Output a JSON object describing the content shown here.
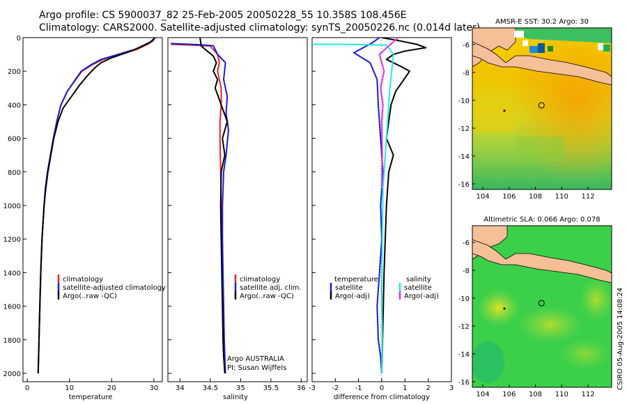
{
  "header": {
    "title_line1": "Argo profile: CS 5900037_82 25-Feb-2005 20050228_55 10.358S 108.456E",
    "title_line2": "Climatology: CARS2000. Satellite-adjusted climatology: synTS_20050226.nc (0.014d later)"
  },
  "side_label": "CSIRO 05-Aug-2005 14:08:24",
  "colors": {
    "red": "#e8241c",
    "blue": "#1a1adc",
    "black": "#000000",
    "cyan": "#22e8e8",
    "magenta": "#e830e0",
    "land": "#f5bf98"
  },
  "chart_data": [
    {
      "id": "temperature",
      "type": "line",
      "xlabel": "temperature",
      "xlim": [
        -1,
        32
      ],
      "ylim": [
        2050,
        0
      ],
      "xticks": [
        0,
        10,
        20,
        30
      ],
      "yticks": [
        0,
        200,
        400,
        600,
        800,
        1000,
        1200,
        1400,
        1600,
        1800,
        2000
      ],
      "legend_position": "lower-right",
      "series": [
        {
          "name": "climatology",
          "color": "red",
          "x": [
            30.2,
            29.8,
            28.5,
            26,
            22,
            18,
            15.5,
            13,
            11.5,
            9.5,
            8,
            7,
            6.2,
            5.5,
            4.8,
            4.3,
            4.0,
            3.5,
            3.2,
            3.0,
            2.8,
            2.7,
            2.6
          ],
          "y": [
            0,
            20,
            40,
            70,
            100,
            130,
            160,
            200,
            250,
            320,
            400,
            500,
            600,
            700,
            800,
            900,
            1000,
            1200,
            1400,
            1600,
            1800,
            1900,
            2000
          ]
        },
        {
          "name": "satellite-adjusted climatology",
          "color": "blue",
          "x": [
            30.2,
            29.6,
            28,
            25.5,
            21.5,
            17.5,
            15.2,
            12.8,
            11.4,
            9.5,
            8,
            7,
            6.2,
            5.5,
            4.8,
            4.3,
            4.0,
            3.5,
            3.2,
            3.0,
            2.8,
            2.7,
            2.6
          ],
          "y": [
            0,
            20,
            40,
            70,
            100,
            130,
            160,
            200,
            250,
            320,
            400,
            500,
            600,
            700,
            800,
            900,
            1000,
            1200,
            1400,
            1600,
            1800,
            1900,
            2000
          ]
        },
        {
          "name": "Argo(..raw -QC)",
          "color": "black",
          "x": [
            30.3,
            29.0,
            26.5,
            23.5,
            20,
            17.5,
            16,
            14.5,
            12.5,
            10.5,
            8.5,
            7.3,
            6.3,
            5.6,
            4.9,
            4.4,
            4.0,
            3.5,
            3.2,
            3.0,
            2.8,
            2.7,
            2.6
          ],
          "y": [
            0,
            30,
            60,
            90,
            120,
            150,
            180,
            220,
            280,
            350,
            420,
            500,
            600,
            700,
            800,
            900,
            1000,
            1200,
            1400,
            1600,
            1800,
            1900,
            2000
          ]
        }
      ]
    },
    {
      "id": "salinity",
      "type": "line",
      "xlabel": "salinity",
      "xlim": [
        33.8,
        36.1
      ],
      "ylim": [
        2050,
        0
      ],
      "xticks": [
        34,
        34.5,
        35,
        35.5,
        36
      ],
      "legend_position": "lower-right",
      "annotations": [
        "Argo AUSTRALIA",
        "PI: Susan Wijffels"
      ],
      "series": [
        {
          "name": "climatology",
          "color": "red",
          "x": [
            33.85,
            34.2,
            34.5,
            34.62,
            34.65,
            34.62,
            34.68,
            34.68,
            34.66,
            34.66,
            34.67,
            34.68,
            34.69,
            34.7,
            34.71,
            34.72,
            34.73,
            34.74
          ],
          "y": [
            40,
            45,
            50,
            100,
            150,
            200,
            300,
            400,
            500,
            600,
            800,
            1000,
            1200,
            1400,
            1600,
            1800,
            1900,
            2000
          ]
        },
        {
          "name": "satellite adj. clim.",
          "color": "blue",
          "x": [
            33.85,
            34.3,
            34.55,
            34.62,
            34.75,
            34.72,
            34.78,
            34.76,
            34.8,
            34.76,
            34.72,
            34.7,
            34.7,
            34.71,
            34.72,
            34.73,
            34.74,
            34.75
          ],
          "y": [
            35,
            42,
            48,
            100,
            150,
            250,
            350,
            450,
            550,
            700,
            800,
            1000,
            1200,
            1400,
            1600,
            1800,
            1900,
            2000
          ]
        },
        {
          "name": "Argo(..raw -QC)",
          "color": "black",
          "x": [
            34.33,
            34.35,
            34.45,
            34.55,
            34.6,
            34.55,
            34.62,
            34.58,
            34.68,
            34.78,
            34.7,
            34.74,
            34.68,
            34.67,
            34.68,
            34.69,
            34.7,
            34.71,
            34.72,
            34.73,
            34.74
          ],
          "y": [
            0,
            50,
            80,
            110,
            150,
            200,
            250,
            300,
            400,
            500,
            600,
            700,
            800,
            1000,
            1200,
            1400,
            1600,
            1800,
            1900,
            1950,
            2000
          ]
        }
      ]
    },
    {
      "id": "difference",
      "type": "line",
      "xlabel": "difference from climatology",
      "xlim": [
        -3,
        3
      ],
      "ylim": [
        2050,
        0
      ],
      "xticks": [
        -3,
        -2,
        -1,
        0,
        1,
        2,
        3
      ],
      "legend_position": "lower-center",
      "legend_group_titles": [
        "temperature",
        "salinity"
      ],
      "series": [
        {
          "name": "satellite",
          "group": "temperature",
          "color": "blue",
          "x": [
            -0.1,
            -0.4,
            -0.8,
            -1.2,
            -0.5,
            -0.2,
            -0.15,
            -0.05,
            0.05,
            -0.05,
            0,
            -0.1,
            -0.2,
            -0.15,
            -0.05,
            0
          ],
          "y": [
            0,
            30,
            60,
            90,
            150,
            250,
            400,
            600,
            800,
            1000,
            1200,
            1400,
            1600,
            1800,
            1900,
            2000
          ]
        },
        {
          "name": "Argo(-adj)",
          "group": "temperature",
          "color": "black",
          "x": [
            0,
            0.8,
            1.5,
            1.9,
            1.0,
            0.5,
            0.2,
            0.8,
            1.2,
            0.9,
            0.6,
            0.4,
            0.3,
            0.2,
            0.5,
            0.3,
            0.2,
            0.15,
            0.1,
            0.05,
            0
          ],
          "y": [
            0,
            20,
            40,
            60,
            80,
            100,
            130,
            170,
            200,
            260,
            320,
            400,
            500,
            600,
            700,
            800,
            1000,
            1200,
            1400,
            1700,
            2000
          ]
        },
        {
          "name": "satellite",
          "group": "salinity",
          "color": "cyan",
          "x": [
            -3,
            -1.5,
            0.2,
            0.5,
            0.35,
            0.25,
            0.15,
            0.05,
            0.02,
            0,
            0.02,
            0,
            0
          ],
          "y": [
            40,
            40,
            45,
            100,
            300,
            500,
            700,
            900,
            1200,
            1500,
            1800,
            1950,
            2000
          ]
        },
        {
          "name": "Argo(-adj)",
          "group": "salinity",
          "color": "magenta",
          "x": [
            0.7,
            0.3,
            -0.1,
            0.1,
            -0.05,
            0.05,
            0.0,
            0.02,
            0
          ],
          "y": [
            0,
            50,
            100,
            200,
            300,
            400,
            500,
            700,
            900
          ]
        }
      ]
    },
    {
      "id": "sst_map",
      "type": "heatmap",
      "title": "AMSR-E SST: 30.2 Argo: 30",
      "xticks": [
        104,
        106,
        108,
        110,
        112
      ],
      "yticks": [
        -6,
        -8,
        -10,
        -12,
        -14,
        -16
      ],
      "xlim": [
        103.2,
        113.8
      ],
      "ylim": [
        -16.4,
        -4.8
      ],
      "argo_marker": [
        108.46,
        -10.36
      ]
    },
    {
      "id": "sla_map",
      "type": "heatmap",
      "title": "Altimetric SLA: 0.066 Argo: 0.078",
      "xticks": [
        104,
        106,
        108,
        110,
        112
      ],
      "yticks": [
        -6,
        -8,
        -10,
        -12,
        -14,
        -16
      ],
      "xlim": [
        103.2,
        113.8
      ],
      "ylim": [
        -16.4,
        -4.8
      ],
      "argo_marker": [
        108.46,
        -10.36
      ]
    }
  ]
}
